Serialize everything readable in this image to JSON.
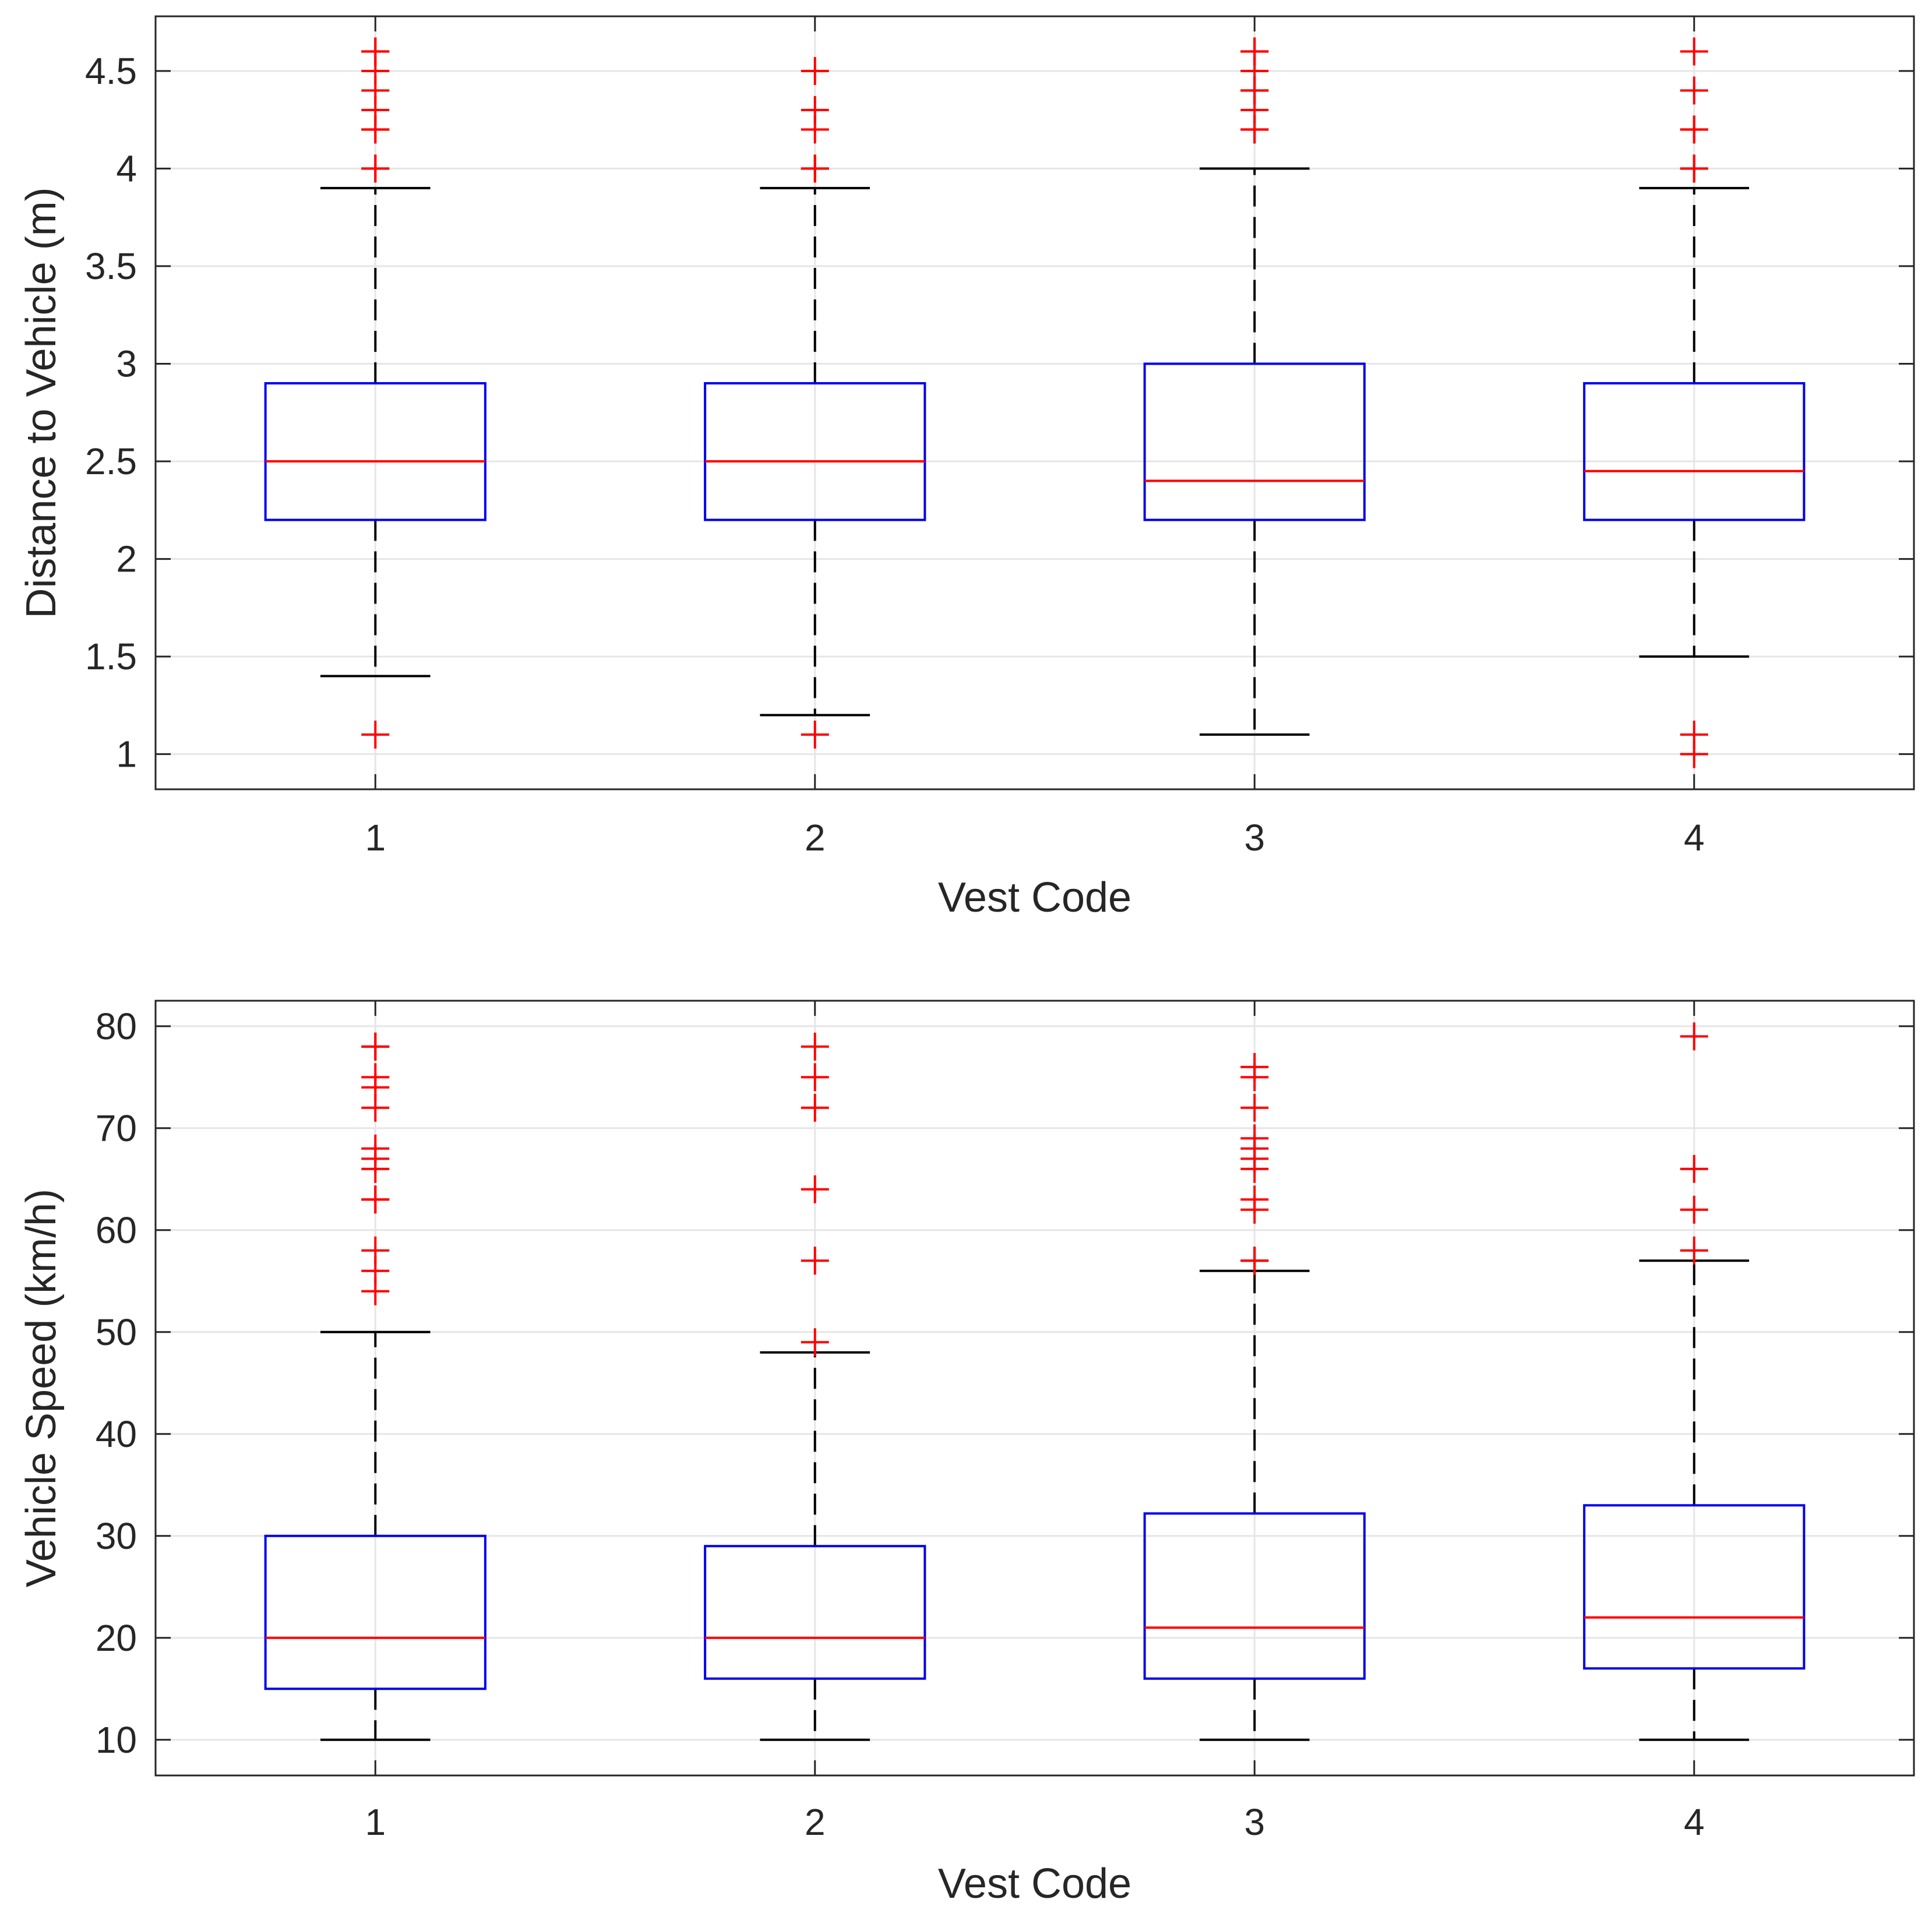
{
  "chart_data": [
    {
      "type": "box",
      "name": "distance-chart",
      "xlabel": "Vest Code",
      "ylabel": "Distance to Vehicle (m)",
      "categories": [
        "1",
        "2",
        "3",
        "4"
      ],
      "ylim": [
        0.82,
        4.78
      ],
      "yticks": [
        1,
        1.5,
        2,
        2.5,
        3,
        3.5,
        4,
        4.5
      ],
      "ytick_labels": [
        "1",
        "1.5",
        "2",
        "2.5",
        "3",
        "3.5",
        "4",
        "4.5"
      ],
      "grid": true,
      "boxes": [
        {
          "category": "1",
          "whisker_low": 1.4,
          "q1": 2.2,
          "median": 2.5,
          "q3": 2.9,
          "whisker_high": 3.9,
          "outliers": [
            1.1,
            4.0,
            4.0,
            4.2,
            4.2,
            4.3,
            4.4,
            4.5,
            4.6,
            4.6
          ]
        },
        {
          "category": "2",
          "whisker_low": 1.2,
          "q1": 2.2,
          "median": 2.5,
          "q3": 2.9,
          "whisker_high": 3.9,
          "outliers": [
            1.1,
            4.0,
            4.0,
            4.2,
            4.3,
            4.5
          ]
        },
        {
          "category": "3",
          "whisker_low": 1.1,
          "q1": 2.2,
          "median": 2.4,
          "q3": 3.0,
          "whisker_high": 4.0,
          "outliers": [
            4.2,
            4.2,
            4.3,
            4.4,
            4.4,
            4.5,
            4.6,
            4.6
          ]
        },
        {
          "category": "4",
          "whisker_low": 1.5,
          "q1": 2.2,
          "median": 2.45,
          "q3": 2.9,
          "whisker_high": 3.9,
          "outliers": [
            1.0,
            1.1,
            4.0,
            4.0,
            4.2,
            4.2,
            4.4,
            4.6
          ]
        }
      ]
    },
    {
      "type": "box",
      "name": "speed-chart",
      "xlabel": "Vest Code",
      "ylabel": "Vehicle Speed (km/h)",
      "categories": [
        "1",
        "2",
        "3",
        "4"
      ],
      "ylim": [
        6.5,
        82.5
      ],
      "yticks": [
        10,
        20,
        30,
        40,
        50,
        60,
        70,
        80
      ],
      "ytick_labels": [
        "10",
        "20",
        "30",
        "40",
        "50",
        "60",
        "70",
        "80"
      ],
      "grid": true,
      "boxes": [
        {
          "category": "1",
          "whisker_low": 10,
          "q1": 15,
          "median": 20,
          "q3": 30,
          "whisker_high": 50,
          "outliers": [
            54,
            56,
            58,
            63,
            63,
            66,
            67,
            68,
            72,
            74,
            75,
            78,
            78
          ]
        },
        {
          "category": "2",
          "whisker_low": 10,
          "q1": 16,
          "median": 20,
          "q3": 29,
          "whisker_high": 48,
          "outliers": [
            49,
            57,
            64,
            72,
            75,
            78
          ]
        },
        {
          "category": "3",
          "whisker_low": 10,
          "q1": 16,
          "median": 21,
          "q3": 32.2,
          "whisker_high": 56,
          "outliers": [
            57,
            57,
            62,
            63,
            66,
            67,
            68,
            69,
            72,
            75,
            76
          ]
        },
        {
          "category": "4",
          "whisker_low": 10,
          "q1": 17,
          "median": 22,
          "q3": 33,
          "whisker_high": 57,
          "outliers": [
            58,
            62,
            66,
            79
          ]
        }
      ]
    }
  ]
}
